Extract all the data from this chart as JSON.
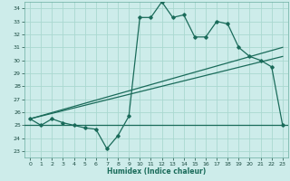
{
  "title": "",
  "xlabel": "Humidex (Indice chaleur)",
  "ylabel": "",
  "bg_color": "#cdecea",
  "grid_color": "#aad8d0",
  "line_color": "#1a6b5a",
  "xlim": [
    -0.5,
    23.5
  ],
  "ylim": [
    22.5,
    34.5
  ],
  "yticks": [
    23,
    24,
    25,
    26,
    27,
    28,
    29,
    30,
    31,
    32,
    33,
    34
  ],
  "xticks": [
    0,
    1,
    2,
    3,
    4,
    5,
    6,
    7,
    8,
    9,
    10,
    11,
    12,
    13,
    14,
    15,
    16,
    17,
    18,
    19,
    20,
    21,
    22,
    23
  ],
  "main_y": [
    25.5,
    25.0,
    25.5,
    25.2,
    25.0,
    24.8,
    24.7,
    23.2,
    24.2,
    25.7,
    33.3,
    33.3,
    34.5,
    33.3,
    33.5,
    31.8,
    31.8,
    33.0,
    32.8,
    31.0,
    30.3,
    30.0,
    29.5,
    25.0
  ],
  "flat_line_y": 25.0,
  "flat_line_x0": 0,
  "flat_line_x1": 23,
  "diag1_x0": 0,
  "diag1_y0": 25.5,
  "diag1_x1": 23,
  "diag1_y1": 30.3,
  "diag2_x0": 0,
  "diag2_y0": 25.5,
  "diag2_x1": 23,
  "diag2_y1": 31.0
}
